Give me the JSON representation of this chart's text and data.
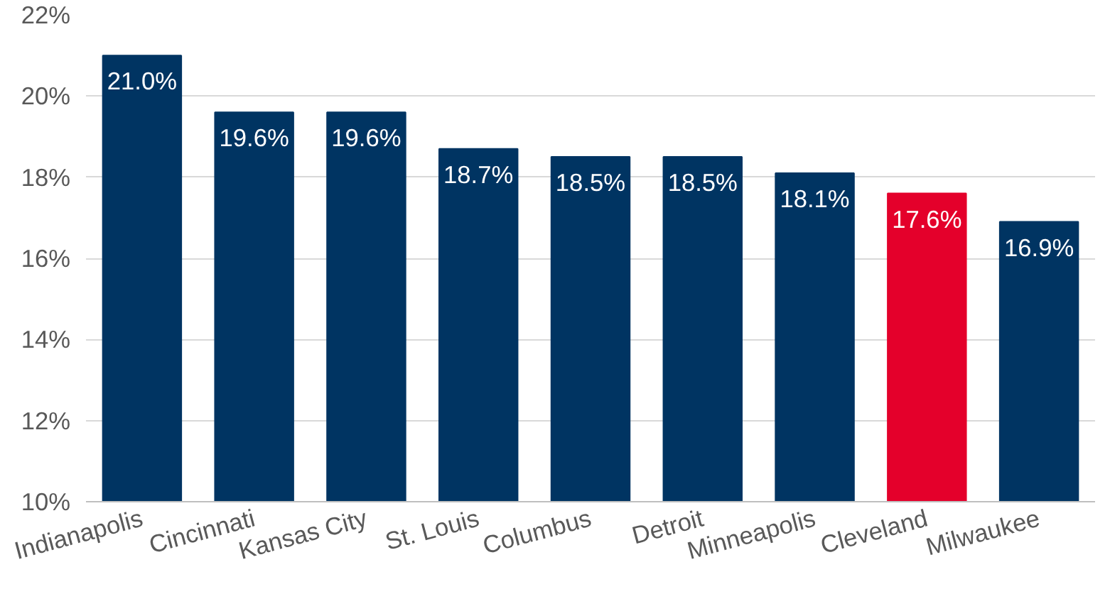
{
  "chart_data": {
    "type": "bar",
    "categories": [
      "Indianapolis",
      "Cincinnati",
      "Kansas City",
      "St. Louis",
      "Columbus",
      "Detroit",
      "Minneapolis",
      "Cleveland",
      "Milwaukee"
    ],
    "values": [
      21.0,
      19.6,
      19.6,
      18.7,
      18.5,
      18.5,
      18.1,
      17.6,
      16.9
    ],
    "colors": [
      "#003462",
      "#003462",
      "#003462",
      "#003462",
      "#003462",
      "#003462",
      "#003462",
      "#e4002b",
      "#003462"
    ],
    "value_labels": [
      "21.0%",
      "19.6%",
      "19.6%",
      "18.7%",
      "18.5%",
      "18.5%",
      "18.1%",
      "17.6%",
      "16.9%"
    ],
    "ylim": [
      10,
      22
    ],
    "yticks": [
      {
        "value": 10,
        "label": "10%"
      },
      {
        "value": 12,
        "label": "12%"
      },
      {
        "value": 14,
        "label": "14%"
      },
      {
        "value": 16,
        "label": "16%"
      },
      {
        "value": 18,
        "label": "18%"
      },
      {
        "value": 20,
        "label": "20%"
      },
      {
        "value": 22,
        "label": "22%"
      }
    ],
    "grid": "y"
  }
}
